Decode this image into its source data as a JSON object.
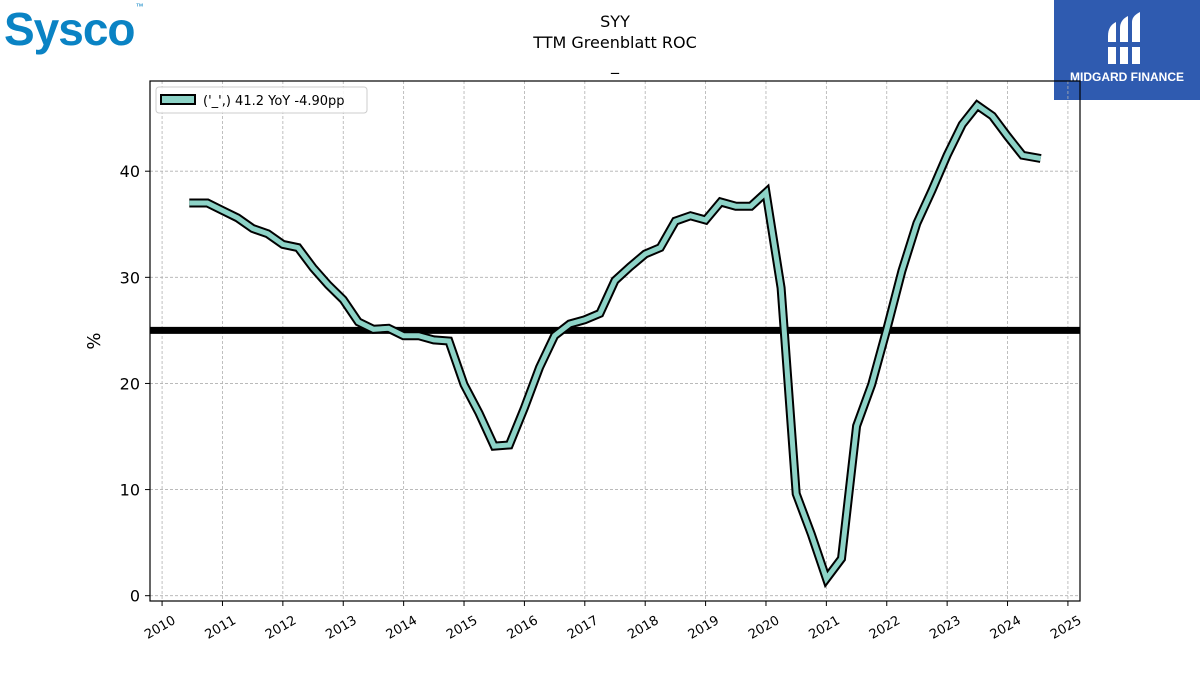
{
  "header": {
    "left_logo_text": "Sysco",
    "left_logo_tm": "™",
    "right_logo_text": "MIDGARD FINANCE"
  },
  "chart_data": {
    "type": "line",
    "title": "SYY",
    "subtitle": "TTM Greenblatt ROC",
    "subsubtitle": "_",
    "ylabel": "%",
    "xlabel": "",
    "ylim": [
      -0.5,
      48.5
    ],
    "xlim": [
      2009.8,
      2025.2
    ],
    "grid": true,
    "legend_placement": "top-left",
    "x_ticks": [
      "2010",
      "2011",
      "2012",
      "2013",
      "2014",
      "2015",
      "2016",
      "2017",
      "2018",
      "2019",
      "2020",
      "2021",
      "2022",
      "2023",
      "2024",
      "2025"
    ],
    "y_ticks": [
      0,
      10,
      20,
      30,
      40
    ],
    "reference_line": {
      "value": 25,
      "color": "#000000"
    },
    "series": [
      {
        "name": "('_',) 41.2 YoY -4.90pp",
        "color": "#8dd3c7",
        "x": [
          2010.45,
          2010.75,
          2011.0,
          2011.25,
          2011.5,
          2011.75,
          2012.0,
          2012.25,
          2012.5,
          2012.75,
          2013.0,
          2013.25,
          2013.5,
          2013.75,
          2014.0,
          2014.25,
          2014.5,
          2014.75,
          2015.0,
          2015.25,
          2015.5,
          2015.75,
          2016.0,
          2016.25,
          2016.5,
          2016.75,
          2017.0,
          2017.25,
          2017.5,
          2017.75,
          2018.0,
          2018.25,
          2018.5,
          2018.75,
          2019.0,
          2019.25,
          2019.5,
          2019.75,
          2020.0,
          2020.25,
          2020.5,
          2020.75,
          2021.0,
          2021.25,
          2021.5,
          2021.75,
          2022.0,
          2022.25,
          2022.5,
          2022.75,
          2023.0,
          2023.25,
          2023.5,
          2023.75,
          2024.0,
          2024.25,
          2024.55
        ],
        "values": [
          37.0,
          37.0,
          36.3,
          35.6,
          34.6,
          34.1,
          33.1,
          32.8,
          30.9,
          29.3,
          27.9,
          25.8,
          25.1,
          25.2,
          24.5,
          24.5,
          24.1,
          24.0,
          19.9,
          17.2,
          14.1,
          14.2,
          17.7,
          21.5,
          24.5,
          25.6,
          26.0,
          26.6,
          29.7,
          31.0,
          32.2,
          32.8,
          35.3,
          35.8,
          35.4,
          37.1,
          36.7,
          36.7,
          38.0,
          29.0,
          9.6,
          5.8,
          1.6,
          3.5,
          16.0,
          19.9,
          25.1,
          30.6,
          35.1,
          38.2,
          41.5,
          44.4,
          46.2,
          45.2,
          43.3,
          41.5,
          41.2
        ]
      }
    ]
  }
}
